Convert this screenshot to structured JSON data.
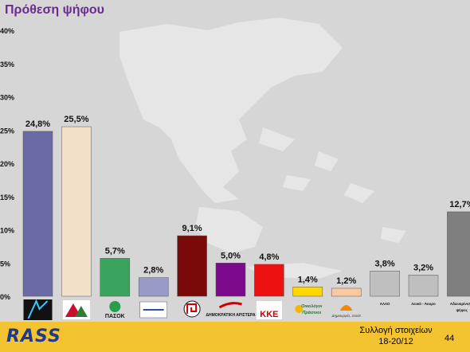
{
  "slide": {
    "title": "Πρόθεση ψήφου",
    "page_number": "44"
  },
  "footer": {
    "logo_text": "RASS",
    "source_line1": "Συλλογή στοιχείων",
    "source_line2": "18-20/12"
  },
  "chart_data": {
    "type": "bar",
    "title": "Πρόθεση ψήφου",
    "ylim": [
      0,
      40
    ],
    "yticks": [
      "0%",
      "5%",
      "10%",
      "15%",
      "20%",
      "25%",
      "30%",
      "35%",
      "40%"
    ],
    "grid": false,
    "categories": [
      "ΝΔ",
      "ΣΥΡΙΖΑ",
      "ΠΑΣΟΚ",
      "ΑΝΕΞΑΡΤΗΤΟΙ ΕΛΛΗΝΕΣ",
      "ΧΡΥΣΗ ΑΥΓΗ",
      "ΔΗΜΟΚΡΑΤΙΚΗ ΑΡΙΣΤΕΡΑ",
      "ΚΚΕ",
      "Οικολόγοι Πράσινοι",
      "Δημιουργία, Ξανά!",
      "ΑΛΛΟ",
      "Λευκό - Άκυρο",
      "Αδιευκρίνιστη ψήφος"
    ],
    "category_labels": [
      "",
      "",
      "ΠΑΣΟΚ",
      "",
      "",
      "ΔΗΜΟΚΡΑΤΙΚΗ ΑΡΙΣΤΕΡΑ",
      "ΚΚΕ",
      "Οικολόγοι Πράσινοι",
      "Δημιουργία, Ξανά!",
      "ΑΛΛΟ",
      "Λευκό - Άκυρο",
      "Αδιευκρίνιστη ψήφος"
    ],
    "values": [
      24.8,
      25.5,
      5.7,
      2.8,
      9.1,
      5.0,
      4.8,
      1.4,
      1.2,
      3.8,
      3.2,
      12.7
    ],
    "value_labels": [
      "24,8%",
      "25,5%",
      "5,7%",
      "2,8%",
      "9,1%",
      "5,0%",
      "4,8%",
      "1,4%",
      "1,2%",
      "3,8%",
      "3,2%",
      "12,7%"
    ],
    "colors": [
      "#6a6aa6",
      "#f2e0c8",
      "#3aa35d",
      "#9a9ac8",
      "#7a0a0a",
      "#7d0a8c",
      "#ee1111",
      "#ffd700",
      "#f9c9a2",
      "#bfbfbf",
      "#bfbfbf",
      "#7f7f7f"
    ]
  }
}
